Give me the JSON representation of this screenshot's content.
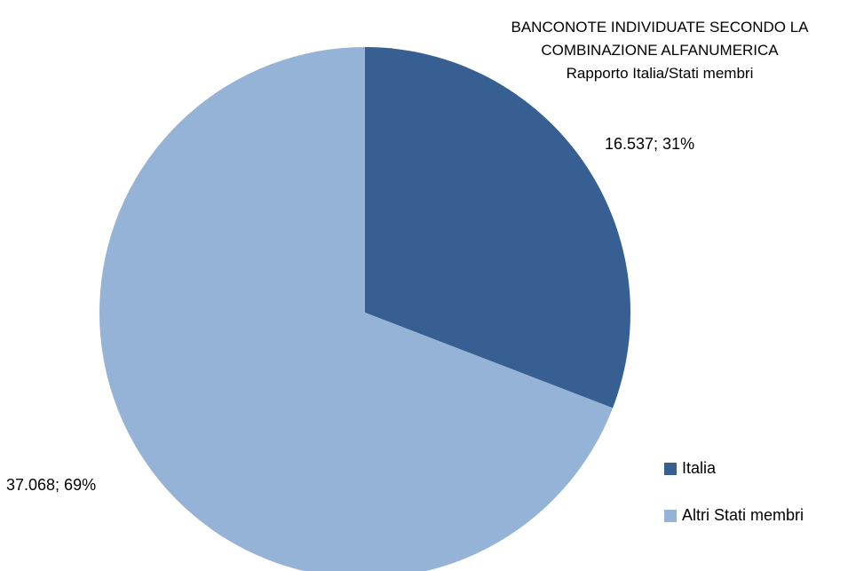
{
  "chart_data": {
    "type": "pie",
    "title": "BANCONOTE INDIVIDUATE SECONDO LA COMBINAZIONE ALFANUMERICA",
    "title_lines": [
      "BANCONOTE INDIVIDUATE SECONDO LA",
      "COMBINAZIONE ALFANUMERICA"
    ],
    "subtitle": "Rapporto Italia/Stati membri",
    "legend_position": "bottom-right",
    "slices": [
      {
        "name": "Italia",
        "value": 16537,
        "percent": 31,
        "label": "16.537; 31%",
        "color": "#375f91"
      },
      {
        "name": "Altri Stati membri",
        "value": 37068,
        "percent": 69,
        "label": "37.068; 69%",
        "color": "#95b3d7"
      }
    ]
  }
}
